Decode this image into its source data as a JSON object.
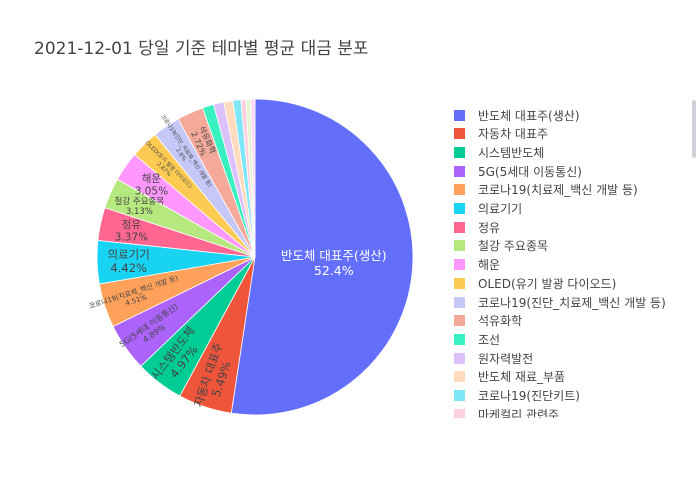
{
  "title": "2021-12-01 당일 기준 테마별 평균 대금 분포",
  "chart_data": {
    "type": "pie",
    "title": "2021-12-01 당일 기준 테마별 평균 대금 분포",
    "direction": "clockwise",
    "legend_position": "right",
    "slices": [
      {
        "label": "반도체 대표주(생산)",
        "value": 52.4,
        "color": "#636efa",
        "text": "52.4%"
      },
      {
        "label": "자동차 대표주",
        "value": 5.49,
        "color": "#EF553B",
        "text": "5.49%"
      },
      {
        "label": "시스템반도체",
        "value": 4.97,
        "color": "#00cc96",
        "text": "4.97%"
      },
      {
        "label": "5G(5세대 이동통신)",
        "value": 4.89,
        "color": "#ab63fa",
        "text": "4.89%"
      },
      {
        "label": "코로나19(치료제_백신 개발 등)",
        "value": 4.51,
        "color": "#FFA15A",
        "text": "4.51%"
      },
      {
        "label": "의료기기",
        "value": 4.42,
        "color": "#19d3f3",
        "text": "4.42%"
      },
      {
        "label": "정유",
        "value": 3.37,
        "color": "#FF6692",
        "text": "3.37%"
      },
      {
        "label": "철강 주요종목",
        "value": 3.13,
        "color": "#B6E880",
        "text": "3.13%"
      },
      {
        "label": "해운",
        "value": 3.05,
        "color": "#FF97FF",
        "text": "3.05%"
      },
      {
        "label": "OLED(유기 발광 다이오드)",
        "value": 2.87,
        "color": "#FECB52",
        "text": "2.87%"
      },
      {
        "label": "코로나19(진단_치료제_백신 개발 등)",
        "value": 2.8,
        "color": "#c5c8f7",
        "text": "2.8%"
      },
      {
        "label": "석유화학",
        "value": 2.72,
        "color": "#f4a99b",
        "text": "2.72%"
      },
      {
        "label": "조선",
        "value": 1.15,
        "color": "#38f0c0",
        "text": ""
      },
      {
        "label": "원자력발전",
        "value": 1.05,
        "color": "#dcc1fa",
        "text": ""
      },
      {
        "label": "반도체 재료_부품",
        "value": 0.95,
        "color": "#ffdcbd",
        "text": ""
      },
      {
        "label": "코로나19(진단키트)",
        "value": 0.8,
        "color": "#7de6f7",
        "text": ""
      },
      {
        "label": "마케컬리 관련주",
        "value": 0.5,
        "color": "#ffd1de",
        "text": ""
      },
      {
        "label": "",
        "value": 0.48,
        "color": "#e3f5cf",
        "text": ""
      },
      {
        "label": "",
        "value": 0.45,
        "color": "#fcd7fc",
        "text": ""
      }
    ]
  }
}
